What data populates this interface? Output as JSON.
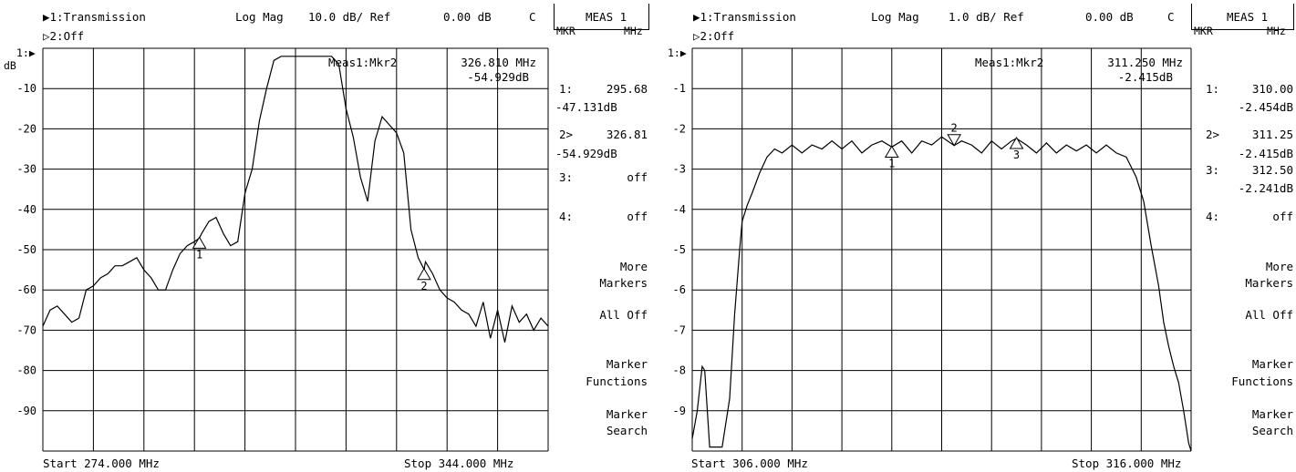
{
  "panels": [
    {
      "channel1": "▶1:Transmission",
      "channel2": "▷2:Off",
      "format": "Log Mag",
      "scale": "10.0 dB/ Ref",
      "ref": "0.00 dB",
      "coupling": "C",
      "meas_title": "MEAS 1",
      "meas_sub_left": "MKR",
      "meas_sub_right": "MHz",
      "ref_marker": "1:▶",
      "y_unit": "dB",
      "active_marker_label": "Meas1:Mkr2",
      "active_marker_freq": "326.810 MHz",
      "active_marker_val": "-54.929dB",
      "start": "Start 274.000 MHz",
      "stop": "Stop 344.000 MHz",
      "markers": [
        {
          "label": "1:",
          "freq": "295.68",
          "val": "-47.131dB"
        },
        {
          "label": "2>",
          "freq": "326.81",
          "val": "-54.929dB"
        },
        {
          "label": "3:",
          "freq": "off",
          "val": ""
        },
        {
          "label": "4:",
          "freq": "off",
          "val": ""
        }
      ],
      "softkeys": [
        {
          "line1": "More",
          "line2": "Markers"
        },
        {
          "line1": "All Off",
          "line2": ""
        },
        {
          "line1": "Marker",
          "line2": "Functions"
        },
        {
          "line1": "Marker",
          "line2": "Search"
        }
      ],
      "trace_color": "#000000",
      "grid_color": "#000000"
    },
    {
      "channel1": "▶1:Transmission",
      "channel2": "▷2:Off",
      "format": "Log Mag",
      "scale": "1.0 dB/ Ref",
      "ref": "0.00 dB",
      "coupling": "C",
      "meas_title": "MEAS 1",
      "meas_sub_left": "MKR",
      "meas_sub_right": "MHz",
      "ref_marker": "1:▶",
      "y_unit": "",
      "active_marker_label": "Meas1:Mkr2",
      "active_marker_freq": "311.250 MHz",
      "active_marker_val": "-2.415dB",
      "start": "Start 306.000 MHz",
      "stop": "Stop 316.000 MHz",
      "markers": [
        {
          "label": "1:",
          "freq": "310.00",
          "val": "-2.454dB"
        },
        {
          "label": "2>",
          "freq": "311.25",
          "val": "-2.415dB"
        },
        {
          "label": "3:",
          "freq": "312.50",
          "val": "-2.241dB"
        },
        {
          "label": "4:",
          "freq": "off",
          "val": ""
        }
      ],
      "softkeys": [
        {
          "line1": "More",
          "line2": "Markers"
        },
        {
          "line1": "All Off",
          "line2": ""
        },
        {
          "line1": "Marker",
          "line2": "Functions"
        },
        {
          "line1": "Marker",
          "line2": "Search"
        }
      ],
      "trace_color": "#000000",
      "grid_color": "#000000"
    }
  ],
  "chart_data": [
    {
      "type": "line",
      "title": "",
      "xlabel": "",
      "ylabel": "dB",
      "xlim": [
        274.0,
        344.0
      ],
      "ylim": [
        -100,
        0
      ],
      "y_ticks": [
        "",
        "-10",
        "-20",
        "-30",
        "-40",
        "-50",
        "-60",
        "-70",
        "-80",
        "-90"
      ],
      "grid": true,
      "series": [
        {
          "x": [
            274.0,
            275.0,
            276.0,
            277.0,
            278.0,
            279.0,
            280.0,
            281.0,
            282.0,
            283.0,
            284.0,
            285.0,
            286.0,
            287.0,
            288.0,
            289.0,
            290.0,
            291.0,
            292.0,
            293.0,
            294.0,
            295.0,
            295.68,
            296.0,
            297.0,
            298.0,
            299.0,
            300.0,
            301.0,
            302.0,
            303.0,
            304.0,
            305.0,
            306.0,
            307.0,
            308.0,
            309.0,
            310.0,
            311.0,
            312.0,
            313.0,
            314.0,
            315.0,
            316.0,
            317.0,
            318.0,
            319.0,
            320.0,
            321.0,
            322.0,
            323.0,
            324.0,
            325.0,
            326.0,
            326.81,
            327.0,
            328.0,
            329.0,
            330.0,
            331.0,
            332.0,
            333.0,
            334.0,
            335.0,
            336.0,
            337.0,
            338.0,
            339.0,
            340.0,
            341.0,
            342.0,
            343.0,
            344.0
          ],
          "y": [
            -69,
            -65,
            -64,
            -66,
            -68,
            -67,
            -60,
            -59,
            -57,
            -56,
            -54,
            -54,
            -53,
            -52,
            -55,
            -57,
            -60,
            -60,
            -55,
            -51,
            -49,
            -48,
            -47.1,
            -46,
            -43,
            -42,
            -46,
            -49,
            -48,
            -36,
            -30,
            -18,
            -10,
            -3,
            -2,
            -2,
            -2,
            -2,
            -2,
            -2,
            -2,
            -2,
            -4,
            -15,
            -22,
            -32,
            -38,
            -23,
            -17,
            -19,
            -21,
            -26,
            -45,
            -52,
            -54.9,
            -53,
            -56,
            -60,
            -62,
            -63,
            -65,
            -66,
            -69,
            -63,
            -72,
            -65,
            -73,
            -64,
            -68,
            -66,
            -70,
            -67,
            -69
          ]
        }
      ],
      "markers": [
        {
          "n": 1,
          "x": 295.68,
          "y": -47.131,
          "dir": "up"
        },
        {
          "n": 2,
          "x": 326.81,
          "y": -54.929,
          "dir": "up"
        }
      ]
    },
    {
      "type": "line",
      "title": "",
      "xlabel": "",
      "ylabel": "",
      "xlim": [
        306.0,
        316.0
      ],
      "ylim": [
        -10,
        0
      ],
      "y_ticks": [
        "",
        "-1",
        "-2",
        "-3",
        "-4",
        "-5",
        "-6",
        "-7",
        "-8",
        "-9"
      ],
      "grid": true,
      "series": [
        {
          "x": [
            306.0,
            306.1,
            306.2,
            306.25,
            306.35,
            306.5,
            306.6,
            306.75,
            306.85,
            306.95,
            307.0,
            307.1,
            307.2,
            307.35,
            307.5,
            307.65,
            307.8,
            308.0,
            308.2,
            308.4,
            308.6,
            308.8,
            309.0,
            309.2,
            309.4,
            309.6,
            309.8,
            310.0,
            310.2,
            310.4,
            310.6,
            310.8,
            311.0,
            311.25,
            311.4,
            311.6,
            311.8,
            312.0,
            312.2,
            312.4,
            312.5,
            312.7,
            312.9,
            313.1,
            313.3,
            313.5,
            313.7,
            313.9,
            314.1,
            314.3,
            314.5,
            314.7,
            314.9,
            315.05,
            315.2,
            315.35,
            315.45,
            315.55,
            315.65,
            315.75,
            315.85,
            315.95,
            316.0
          ],
          "y": [
            -9.7,
            -9.0,
            -7.9,
            -8.0,
            -9.9,
            -9.9,
            -9.9,
            -8.7,
            -6.6,
            -5.0,
            -4.3,
            -3.9,
            -3.6,
            -3.1,
            -2.7,
            -2.5,
            -2.6,
            -2.4,
            -2.6,
            -2.4,
            -2.5,
            -2.3,
            -2.5,
            -2.3,
            -2.6,
            -2.4,
            -2.3,
            -2.45,
            -2.3,
            -2.6,
            -2.3,
            -2.4,
            -2.2,
            -2.415,
            -2.3,
            -2.4,
            -2.6,
            -2.3,
            -2.5,
            -2.3,
            -2.24,
            -2.4,
            -2.6,
            -2.35,
            -2.6,
            -2.4,
            -2.55,
            -2.4,
            -2.6,
            -2.4,
            -2.6,
            -2.7,
            -3.2,
            -3.8,
            -4.9,
            -5.9,
            -6.8,
            -7.4,
            -7.9,
            -8.3,
            -9.0,
            -9.8,
            -10.0
          ]
        }
      ],
      "markers": [
        {
          "n": 1,
          "x": 310.0,
          "y": -2.454,
          "dir": "up"
        },
        {
          "n": 2,
          "x": 311.25,
          "y": -2.415,
          "dir": "down"
        },
        {
          "n": 3,
          "x": 312.5,
          "y": -2.241,
          "dir": "up"
        }
      ]
    }
  ]
}
